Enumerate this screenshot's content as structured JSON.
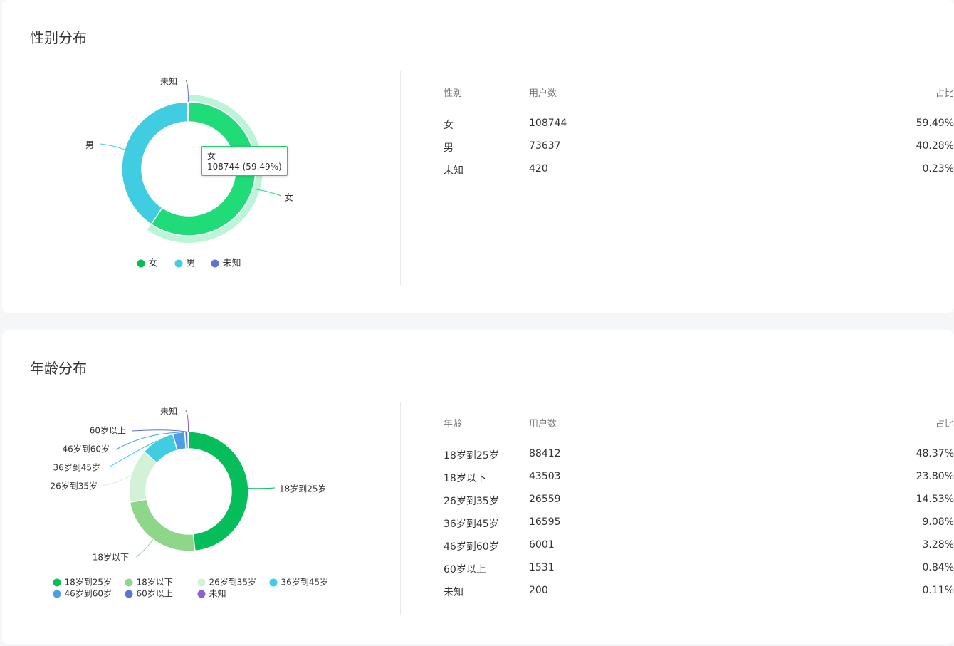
{
  "gender_section": {
    "title": "性别分布",
    "tooltip": {
      "name": "女",
      "value": "108744 (59.49%)"
    },
    "legend": [
      {
        "label": "女",
        "color": "#05be5a"
      },
      {
        "label": "男",
        "color": "#40cde1"
      },
      {
        "label": "未知",
        "color": "#5f72d0"
      }
    ],
    "table": {
      "headers": [
        "性别",
        "用户数",
        "占比"
      ],
      "rows": [
        [
          "女",
          "108744",
          "59.49%"
        ],
        [
          "男",
          "73637",
          "40.28%"
        ],
        [
          "未知",
          "420",
          "0.23%"
        ]
      ]
    }
  },
  "age_section": {
    "title": "年龄分布",
    "legend": [
      {
        "label": "18岁到25岁",
        "color": "#05be5a"
      },
      {
        "label": "18岁以下",
        "color": "#8ed68a"
      },
      {
        "label": "26岁到35岁",
        "color": "#d3f1d7"
      },
      {
        "label": "36岁到45岁",
        "color": "#40cde1"
      },
      {
        "label": "46岁到60岁",
        "color": "#4b9fe6"
      },
      {
        "label": "60岁以上",
        "color": "#5f72d0"
      },
      {
        "label": "未知",
        "color": "#8e5fd6"
      }
    ],
    "table": {
      "headers": [
        "年龄",
        "用户数",
        "占比"
      ],
      "rows": [
        [
          "18岁到25岁",
          "88412",
          "48.37%"
        ],
        [
          "18岁以下",
          "43503",
          "23.80%"
        ],
        [
          "26岁到35岁",
          "26559",
          "14.53%"
        ],
        [
          "36岁到45岁",
          "16595",
          "9.08%"
        ],
        [
          "46岁到60岁",
          "6001",
          "3.28%"
        ],
        [
          "60岁以上",
          "1531",
          "0.84%"
        ],
        [
          "未知",
          "200",
          "0.11%"
        ]
      ]
    }
  },
  "chart_data": [
    {
      "type": "pie",
      "title": "性别分布",
      "categories": [
        "女",
        "男",
        "未知"
      ],
      "values": [
        108744,
        73637,
        420
      ],
      "percentages": [
        59.49,
        40.28,
        0.23
      ],
      "colors": [
        "#1fdb78",
        "#40cde1",
        "#5f72d0"
      ],
      "highlighted": "女",
      "legend_position": "bottom"
    },
    {
      "type": "pie",
      "title": "年龄分布",
      "categories": [
        "18岁到25岁",
        "18岁以下",
        "26岁到35岁",
        "36岁到45岁",
        "46岁到60岁",
        "60岁以上",
        "未知"
      ],
      "values": [
        88412,
        43503,
        26559,
        16595,
        6001,
        1531,
        200
      ],
      "percentages": [
        48.37,
        23.8,
        14.53,
        9.08,
        3.28,
        0.84,
        0.11
      ],
      "colors": [
        "#05be5a",
        "#8ed68a",
        "#d3f1d7",
        "#40cde1",
        "#4b9fe6",
        "#5f72d0",
        "#8e5fd6"
      ],
      "legend_position": "bottom"
    }
  ]
}
